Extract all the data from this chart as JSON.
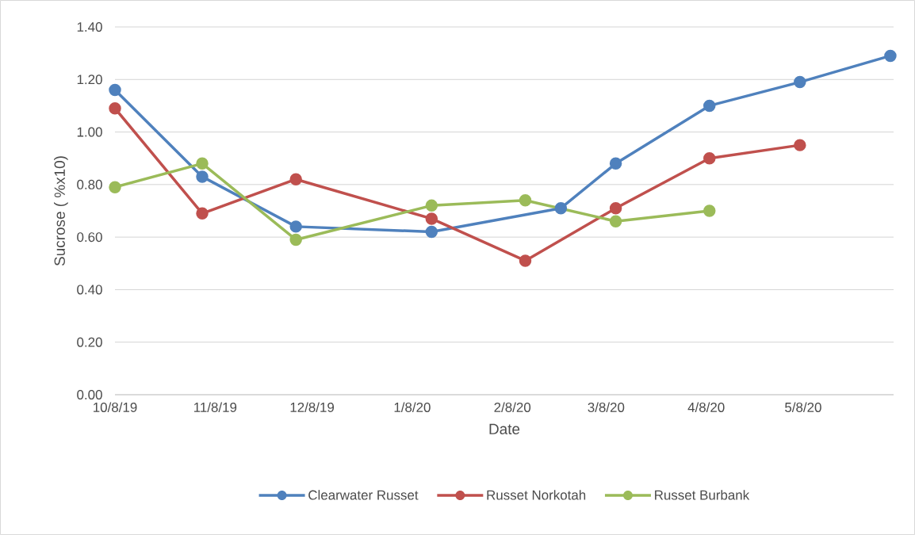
{
  "chart_data": {
    "type": "line",
    "xlabel": "Date",
    "ylabel": "Sucrose ( %x10)",
    "xlim": [
      "2019-10-08",
      "2020-06-05"
    ],
    "xticks": [
      {
        "value": "2019-10-08",
        "label": "10/8/19"
      },
      {
        "value": "2019-11-08",
        "label": "11/8/19"
      },
      {
        "value": "2019-12-08",
        "label": "12/8/19"
      },
      {
        "value": "2020-01-08",
        "label": "1/8/20"
      },
      {
        "value": "2020-02-08",
        "label": "2/8/20"
      },
      {
        "value": "2020-03-08",
        "label": "3/8/20"
      },
      {
        "value": "2020-04-08",
        "label": "4/8/20"
      },
      {
        "value": "2020-05-08",
        "label": "5/8/20"
      }
    ],
    "ylim": [
      0,
      1.4
    ],
    "yticks": [
      {
        "value": 0,
        "label": "0.00"
      },
      {
        "value": 0.2,
        "label": "0.20"
      },
      {
        "value": 0.4,
        "label": "0.40"
      },
      {
        "value": 0.6,
        "label": "0.60"
      },
      {
        "value": 0.8,
        "label": "0.80"
      },
      {
        "value": 1.0,
        "label": "1.00"
      },
      {
        "value": 1.2,
        "label": "1.20"
      },
      {
        "value": 1.4,
        "label": "1.40"
      }
    ],
    "grid": "y",
    "legend": "bottom",
    "marker": "circle",
    "line_style": "solid",
    "series": [
      {
        "name": "Clearwater Russet",
        "color": "#4f81bd",
        "x": [
          "2019-10-08",
          "2019-11-04",
          "2019-12-03",
          "2020-01-14",
          "2020-02-23",
          "2020-03-11",
          "2020-04-09",
          "2020-05-07",
          "2020-06-04"
        ],
        "values": [
          1.16,
          0.83,
          0.64,
          0.62,
          0.71,
          0.88,
          1.1,
          1.19,
          1.29
        ]
      },
      {
        "name": "Russet Norkotah",
        "color": "#c0504d",
        "x": [
          "2019-10-08",
          "2019-11-04",
          "2019-12-03",
          "2020-01-14",
          "2020-02-12",
          "2020-03-11",
          "2020-04-09",
          "2020-05-07"
        ],
        "values": [
          1.09,
          0.69,
          0.82,
          0.67,
          0.51,
          0.71,
          0.9,
          0.95
        ]
      },
      {
        "name": "Russet Burbank",
        "color": "#9bbb59",
        "x": [
          "2019-10-08",
          "2019-11-04",
          "2019-12-03",
          "2020-01-14",
          "2020-02-12",
          "2020-03-11",
          "2020-04-09"
        ],
        "values": [
          0.79,
          0.88,
          0.59,
          0.72,
          0.74,
          0.66,
          0.7
        ]
      }
    ]
  }
}
